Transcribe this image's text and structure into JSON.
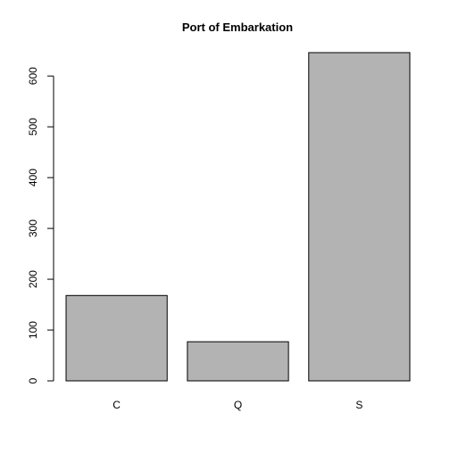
{
  "chart_data": {
    "type": "bar",
    "title": "Port of Embarkation",
    "xlabel": "",
    "ylabel": "",
    "categories": [
      "C",
      "Q",
      "S"
    ],
    "values": [
      168,
      77,
      646
    ],
    "ylim": [
      0,
      646
    ],
    "yticks": [
      0,
      100,
      200,
      300,
      400,
      500,
      600
    ],
    "grid": false,
    "legend": "none",
    "colors": {
      "bar_fill": "#b3b3b3",
      "bar_stroke": "#000000",
      "axis": "#000000"
    }
  }
}
